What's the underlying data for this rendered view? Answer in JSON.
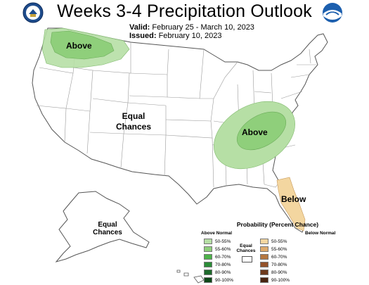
{
  "title": "Weeks 3-4 Precipitation Outlook",
  "valid_label": "Valid:",
  "valid_value": "February 25 - March 10, 2023",
  "issued_label": "Issued:",
  "issued_value": "February 10, 2023",
  "logos": {
    "left": "doc-seal-icon",
    "right": "noaa-logo-icon",
    "right_text": "NOAA"
  },
  "map_labels": {
    "northwest": "Above",
    "ohio_valley": "Above",
    "florida": "Below",
    "conus_equal_1": "Equal",
    "conus_equal_2": "Chances",
    "alaska_equal_1": "Equal",
    "alaska_equal_2": "Chances"
  },
  "legend": {
    "title": "Probability (Percent Chance)",
    "above_head": "Above Normal",
    "below_head": "Below Normal",
    "equal_1": "Equal",
    "equal_2": "Chances",
    "above": [
      {
        "label": "50-55%",
        "color": "#b6dfa5"
      },
      {
        "label": "55-60%",
        "color": "#8fcf7b"
      },
      {
        "label": "60-70%",
        "color": "#4db34a"
      },
      {
        "label": "70-80%",
        "color": "#2b8c37"
      },
      {
        "label": "80-90%",
        "color": "#1d6a2b"
      },
      {
        "label": "90-100%",
        "color": "#0e4818"
      }
    ],
    "below": [
      {
        "label": "50-55%",
        "color": "#f3d6a0"
      },
      {
        "label": "55-60%",
        "color": "#deaa6c"
      },
      {
        "label": "60-70%",
        "color": "#b57740"
      },
      {
        "label": "70-80%",
        "color": "#94522a"
      },
      {
        "label": "80-90%",
        "color": "#6e3a1c"
      },
      {
        "label": "90-100%",
        "color": "#4a2410"
      }
    ]
  },
  "colors": {
    "above_light": "#b6dfa5",
    "above_mid": "#8fcf7b",
    "below_light": "#f3d6a0",
    "state_lines": "#9a9a9a"
  }
}
